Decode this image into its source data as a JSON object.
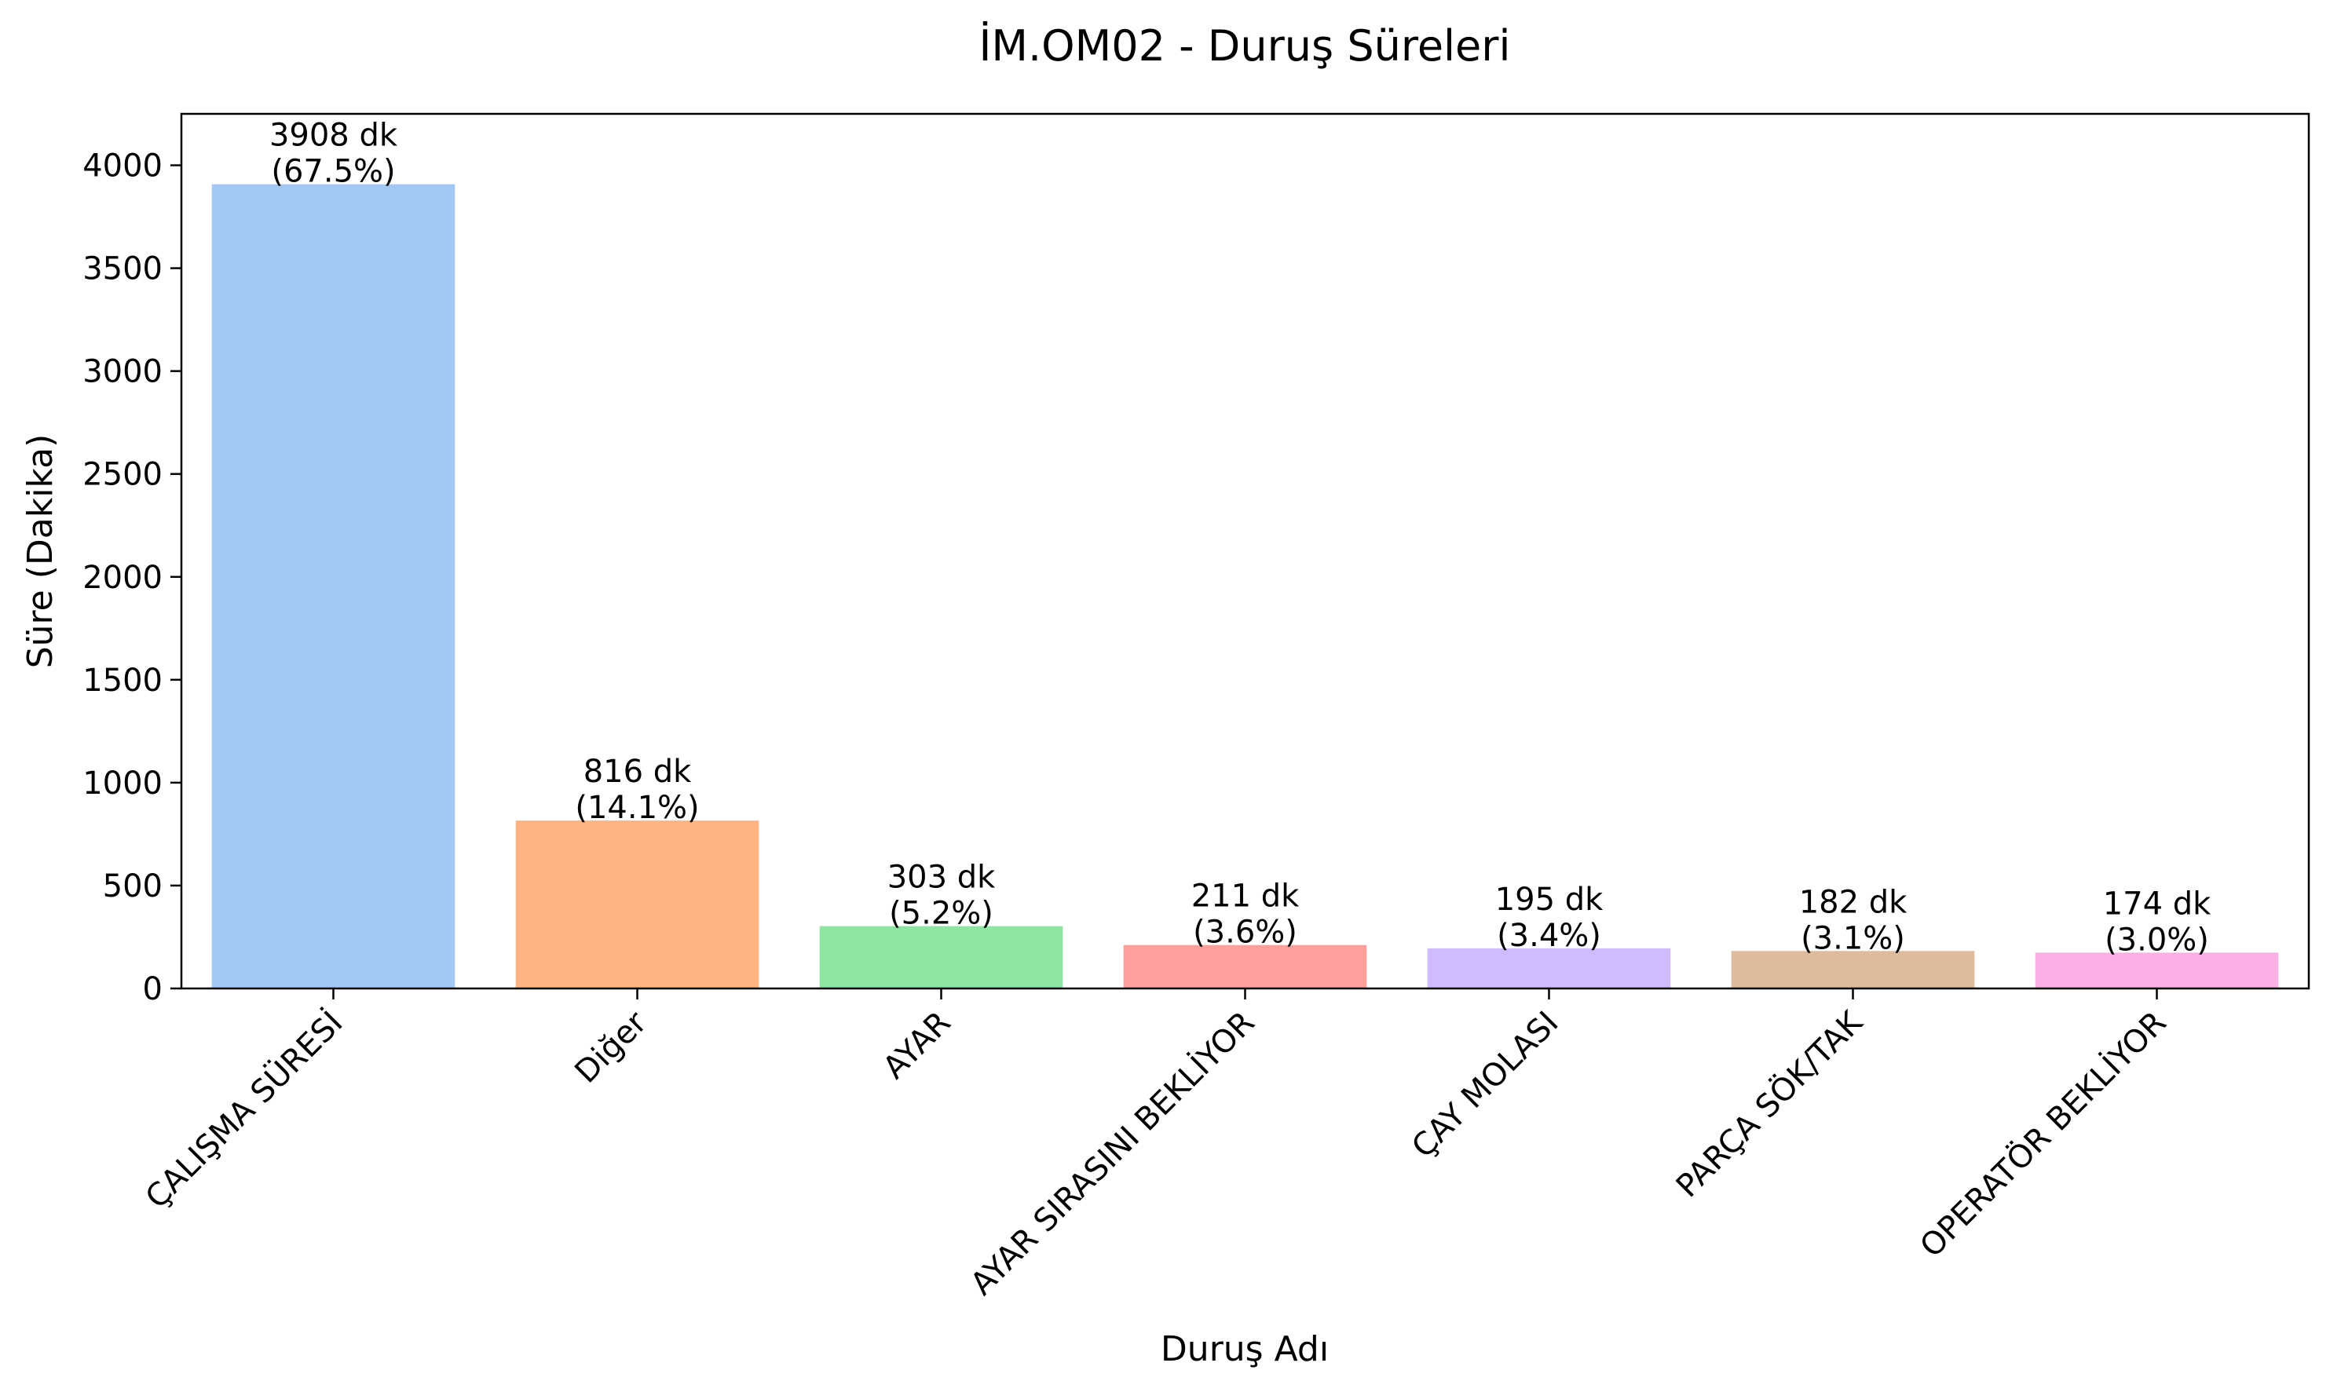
{
  "chart_data": {
    "type": "bar",
    "title": "İM.OM02 - Duruş Süreleri",
    "xlabel": "Duruş Adı",
    "ylabel": "Süre (Dakika)",
    "ylim": [
      0,
      4250
    ],
    "yticks": [
      0,
      500,
      1000,
      1500,
      2000,
      2500,
      3000,
      3500,
      4000
    ],
    "grid": false,
    "categories": [
      "ÇALIŞMA SÜRESİ",
      "Diğer",
      "AYAR",
      "AYAR SIRASINI BEKLİYOR",
      "ÇAY MOLASI",
      "PARÇA SÖK/TAK",
      "OPERATÖR BEKLİYOR"
    ],
    "values": [
      3908,
      816,
      303,
      211,
      195,
      182,
      174
    ],
    "value_labels": [
      "3908 dk",
      "816 dk",
      "303 dk",
      "211 dk",
      "195 dk",
      "182 dk",
      "174 dk"
    ],
    "percent_labels": [
      "(67.5%)",
      "(14.1%)",
      "(5.2%)",
      "(3.6%)",
      "(3.4%)",
      "(3.1%)",
      "(3.0%)"
    ],
    "colors": [
      "#a1c9f4",
      "#ffb482",
      "#8de5a1",
      "#ff9f9b",
      "#d0bbff",
      "#debb9b",
      "#fab0e4"
    ]
  }
}
